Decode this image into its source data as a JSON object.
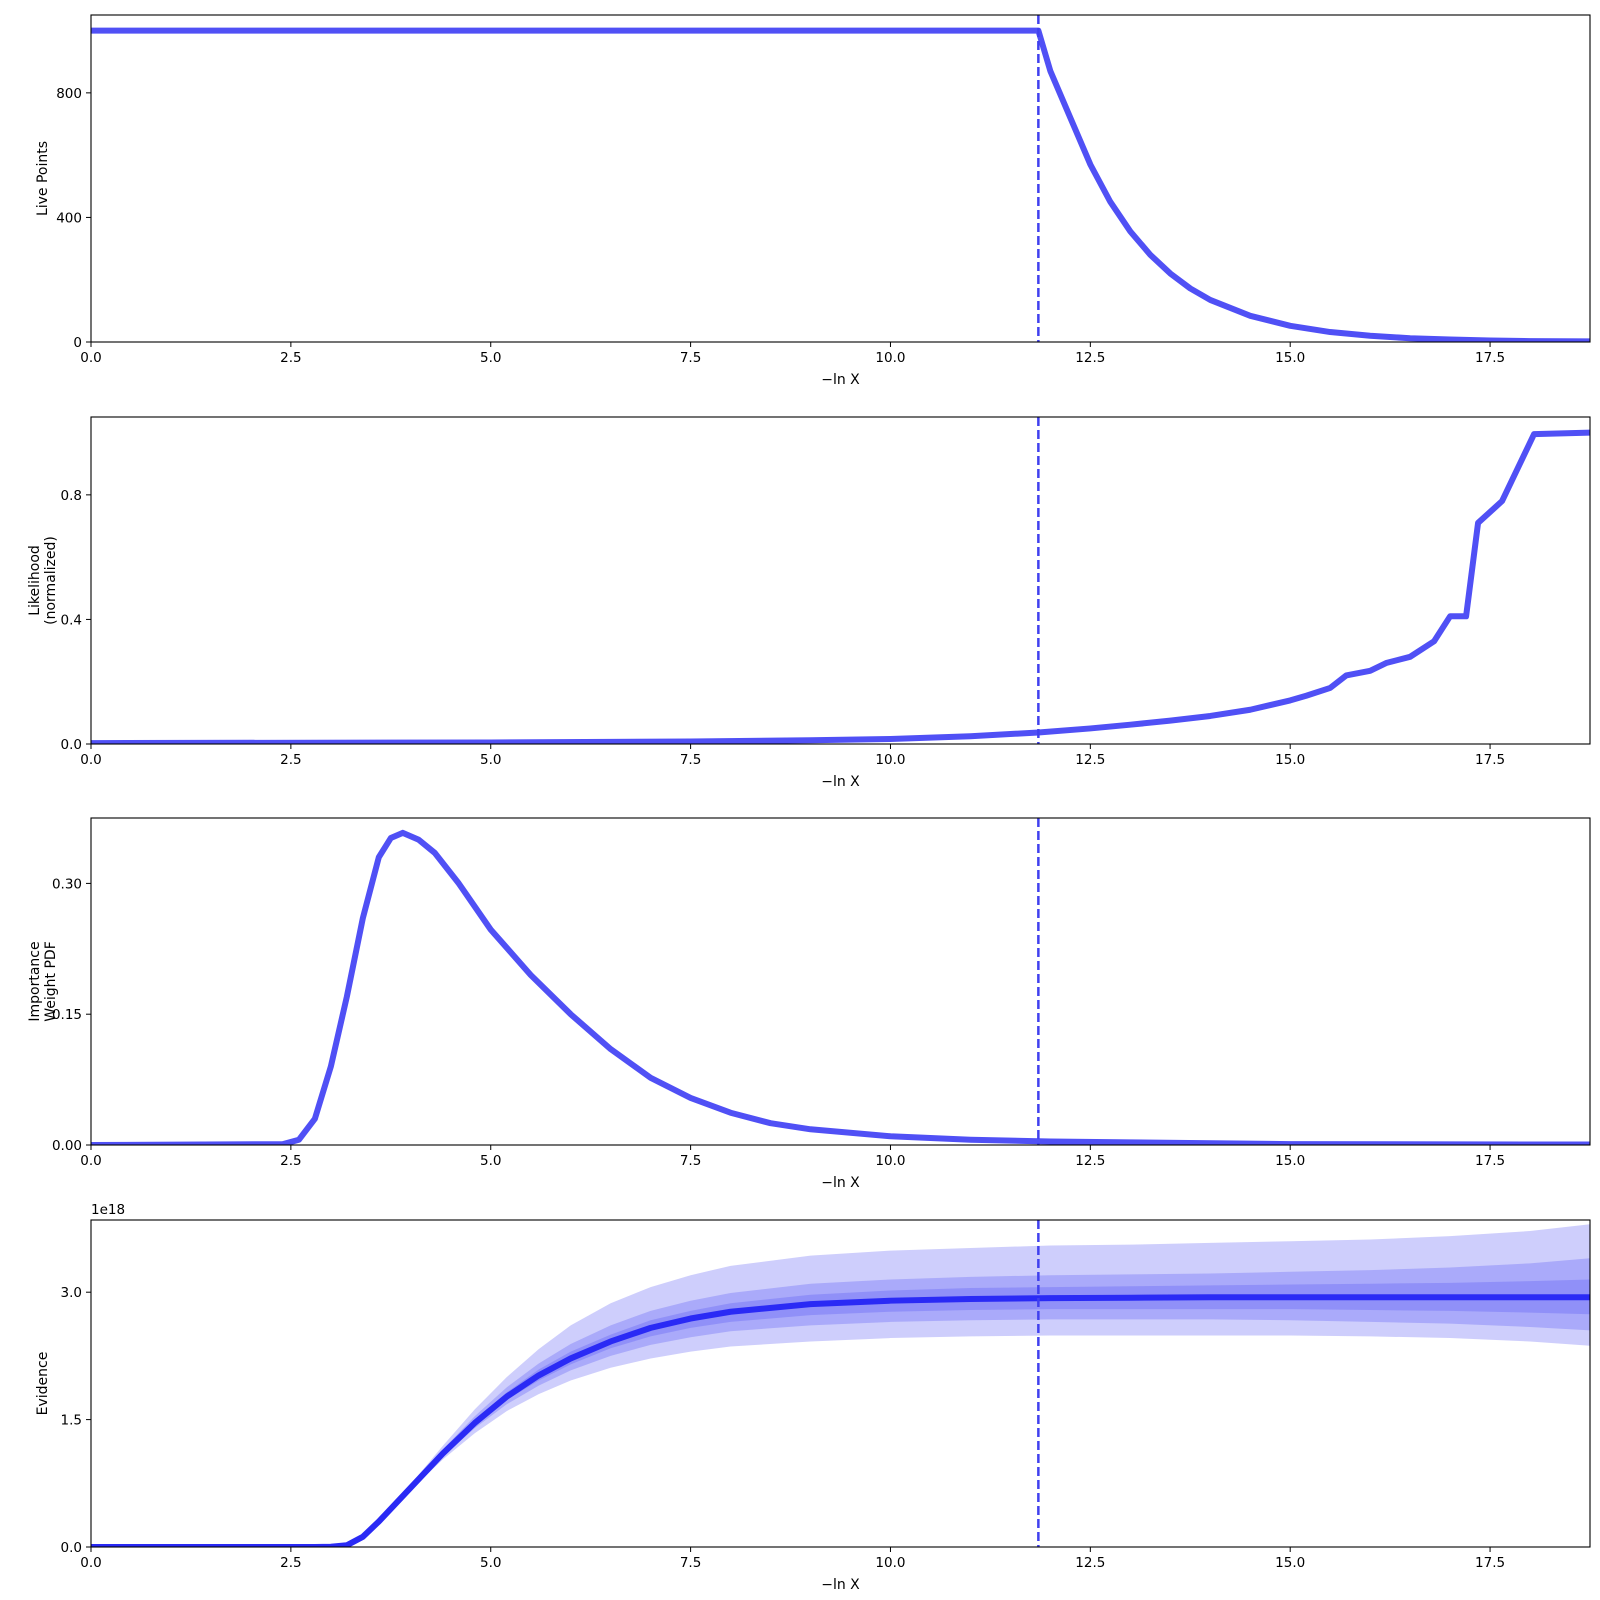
{
  "chart_data": [
    {
      "type": "line",
      "xlabel": "−ln X",
      "ylabel": "Live Points",
      "xlim": [
        0,
        18.75
      ],
      "ylim": [
        0,
        1050
      ],
      "xticks": [
        "0.0",
        "2.5",
        "5.0",
        "7.5",
        "10.0",
        "12.5",
        "15.0",
        "17.5"
      ],
      "yticks": [
        "0",
        "400",
        "800"
      ],
      "vline": 11.85,
      "color": "#5050f5",
      "series": [
        {
          "x": [
            0,
            11.8,
            11.85,
            12.0,
            12.25,
            12.5,
            12.75,
            13.0,
            13.25,
            13.5,
            13.75,
            14.0,
            14.5,
            15.0,
            15.5,
            16.0,
            16.5,
            17.0,
            17.5,
            18.0,
            18.75
          ],
          "y": [
            1000,
            1000,
            1000,
            870,
            720,
            570,
            450,
            355,
            280,
            220,
            172,
            135,
            84,
            52,
            32,
            20,
            12,
            8,
            5,
            3,
            2
          ]
        }
      ]
    },
    {
      "type": "line",
      "xlabel": "−ln X",
      "ylabel": "Likelihood\n(normalized)",
      "xlim": [
        0,
        18.75
      ],
      "ylim": [
        0,
        1.05
      ],
      "xticks": [
        "0.0",
        "2.5",
        "5.0",
        "7.5",
        "10.0",
        "12.5",
        "15.0",
        "17.5"
      ],
      "yticks": [
        "0.0",
        "0.4",
        "0.8"
      ],
      "vline": 11.85,
      "color": "#5050f5",
      "series": [
        {
          "x": [
            0,
            5.0,
            7.5,
            9.0,
            10.0,
            11.0,
            11.85,
            12.5,
            13.0,
            13.5,
            14.0,
            14.5,
            15.0,
            15.2,
            15.5,
            15.7,
            16.0,
            16.2,
            16.5,
            16.8,
            17.0,
            17.2,
            17.35,
            17.65,
            18.05,
            18.75
          ],
          "y": [
            0.003,
            0.005,
            0.008,
            0.012,
            0.016,
            0.025,
            0.037,
            0.05,
            0.062,
            0.075,
            0.09,
            0.11,
            0.14,
            0.155,
            0.18,
            0.22,
            0.235,
            0.26,
            0.28,
            0.33,
            0.41,
            0.41,
            0.71,
            0.78,
            0.995,
            1.0
          ]
        }
      ]
    },
    {
      "type": "line",
      "xlabel": "−ln X",
      "ylabel": "Importance\nWeight PDF",
      "xlim": [
        0,
        18.75
      ],
      "ylim": [
        0,
        0.375
      ],
      "xticks": [
        "0.0",
        "2.5",
        "5.0",
        "7.5",
        "10.0",
        "12.5",
        "15.0",
        "17.5"
      ],
      "yticks": [
        "0.00",
        "0.15",
        "0.30"
      ],
      "vline": 11.85,
      "color": "#5050f5",
      "series": [
        {
          "x": [
            0,
            2.4,
            2.6,
            2.8,
            3.0,
            3.2,
            3.4,
            3.6,
            3.75,
            3.9,
            4.1,
            4.3,
            4.6,
            5.0,
            5.5,
            6.0,
            6.5,
            7.0,
            7.5,
            8.0,
            8.5,
            9.0,
            10.0,
            11.0,
            12.0,
            13.0,
            15.0,
            18.75
          ],
          "y": [
            0,
            0.001,
            0.006,
            0.03,
            0.09,
            0.17,
            0.26,
            0.33,
            0.352,
            0.358,
            0.35,
            0.335,
            0.3,
            0.247,
            0.195,
            0.15,
            0.11,
            0.077,
            0.054,
            0.037,
            0.025,
            0.018,
            0.01,
            0.006,
            0.004,
            0.003,
            0.001,
            0.0005
          ]
        }
      ]
    },
    {
      "type": "area",
      "xlabel": "−ln X",
      "ylabel": "Evidence",
      "offset_text": "1e18",
      "xlim": [
        0,
        18.75
      ],
      "ylim": [
        0,
        3.85
      ],
      "xticks": [
        "0.0",
        "2.5",
        "5.0",
        "7.5",
        "10.0",
        "12.5",
        "15.0",
        "17.5"
      ],
      "yticks": [
        "0.0",
        "1.5",
        "3.0"
      ],
      "vline": 11.85,
      "color": "#2a2af5",
      "band_color": "#5050f5",
      "x": [
        0,
        2.8,
        3.0,
        3.2,
        3.4,
        3.6,
        3.8,
        4.0,
        4.4,
        4.8,
        5.2,
        5.6,
        6.0,
        6.5,
        7.0,
        7.5,
        8.0,
        9.0,
        10.0,
        11.0,
        12.0,
        13.0,
        14.0,
        15.0,
        16.0,
        17.0,
        18.0,
        18.75
      ],
      "series": [
        {
          "name": "median",
          "values": [
            0,
            0,
            0.003,
            0.02,
            0.12,
            0.3,
            0.5,
            0.7,
            1.1,
            1.46,
            1.77,
            2.02,
            2.22,
            2.42,
            2.58,
            2.69,
            2.77,
            2.86,
            2.9,
            2.92,
            2.93,
            2.935,
            2.94,
            2.94,
            2.94,
            2.94,
            2.94,
            2.94
          ]
        }
      ],
      "bands": [
        {
          "lower": [
            0,
            0,
            0.003,
            0.02,
            0.12,
            0.29,
            0.49,
            0.67,
            1.03,
            1.34,
            1.6,
            1.8,
            1.96,
            2.11,
            2.22,
            2.3,
            2.36,
            2.42,
            2.46,
            2.48,
            2.49,
            2.49,
            2.49,
            2.49,
            2.48,
            2.46,
            2.42,
            2.37
          ],
          "upper": [
            0,
            0,
            0.003,
            0.02,
            0.12,
            0.31,
            0.52,
            0.74,
            1.19,
            1.62,
            2.0,
            2.33,
            2.61,
            2.87,
            3.06,
            3.2,
            3.31,
            3.43,
            3.49,
            3.52,
            3.55,
            3.56,
            3.58,
            3.6,
            3.62,
            3.66,
            3.72,
            3.8
          ]
        },
        {
          "lower": [
            0,
            0,
            0.003,
            0.02,
            0.12,
            0.295,
            0.495,
            0.68,
            1.06,
            1.4,
            1.68,
            1.9,
            2.08,
            2.25,
            2.38,
            2.47,
            2.54,
            2.61,
            2.65,
            2.67,
            2.68,
            2.68,
            2.68,
            2.67,
            2.65,
            2.63,
            2.59,
            2.55
          ],
          "upper": [
            0,
            0,
            0.003,
            0.02,
            0.12,
            0.305,
            0.51,
            0.72,
            1.15,
            1.54,
            1.88,
            2.16,
            2.39,
            2.61,
            2.78,
            2.9,
            2.99,
            3.1,
            3.15,
            3.18,
            3.2,
            3.21,
            3.22,
            3.24,
            3.26,
            3.29,
            3.34,
            3.4
          ]
        },
        {
          "lower": [
            0,
            0,
            0.003,
            0.02,
            0.12,
            0.298,
            0.498,
            0.69,
            1.08,
            1.43,
            1.73,
            1.96,
            2.15,
            2.34,
            2.48,
            2.58,
            2.65,
            2.73,
            2.77,
            2.79,
            2.8,
            2.8,
            2.8,
            2.8,
            2.79,
            2.78,
            2.76,
            2.74
          ],
          "upper": [
            0,
            0,
            0.003,
            0.02,
            0.12,
            0.302,
            0.505,
            0.71,
            1.13,
            1.5,
            1.82,
            2.09,
            2.3,
            2.5,
            2.67,
            2.78,
            2.87,
            2.97,
            3.02,
            3.05,
            3.06,
            3.07,
            3.08,
            3.09,
            3.1,
            3.11,
            3.13,
            3.15
          ]
        }
      ]
    }
  ]
}
